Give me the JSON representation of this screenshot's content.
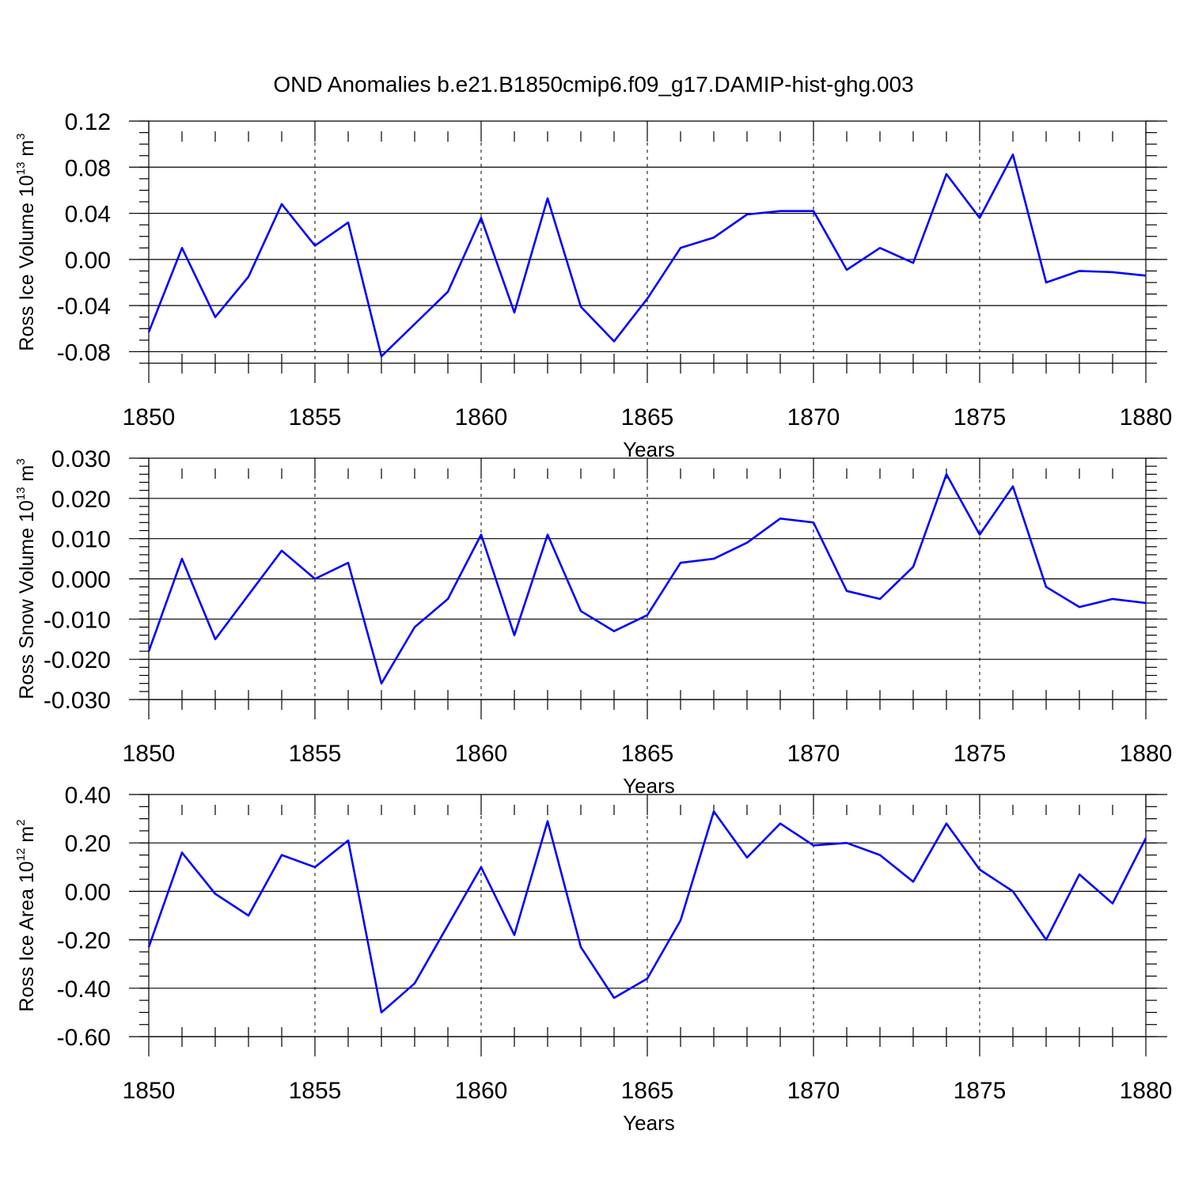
{
  "title": "OND Anomalies b.e21.B1850cmip6.f09_g17.DAMIP-hist-ghg.003",
  "line_color": "#0000ff",
  "chart_data": [
    {
      "type": "line",
      "ylabel_main": "Ross Ice Volume 10",
      "ylabel_exp": "13",
      "ylabel_unit": " m",
      "ylabel_unit_exp": "3",
      "xlabel": "Years",
      "xlim": [
        1850,
        1880
      ],
      "ylim": [
        -0.09,
        0.12
      ],
      "xticks": [
        1850,
        1855,
        1860,
        1865,
        1870,
        1875,
        1880
      ],
      "xtick_labels": [
        "1850",
        "1855",
        "1860",
        "1865",
        "1870",
        "1875",
        "1880"
      ],
      "yticks": [
        -0.08,
        -0.04,
        0.0,
        0.04,
        0.08,
        0.12
      ],
      "ytick_labels": [
        "-0.08",
        "-0.04",
        "0.00",
        "0.04",
        "0.08",
        "0.12"
      ],
      "yminor_step": 0.01,
      "x": [
        1850,
        1851,
        1852,
        1853,
        1854,
        1855,
        1856,
        1857,
        1858,
        1859,
        1860,
        1861,
        1862,
        1863,
        1864,
        1865,
        1866,
        1867,
        1868,
        1869,
        1870,
        1871,
        1872,
        1873,
        1874,
        1875,
        1876,
        1877,
        1878,
        1879,
        1880
      ],
      "series": [
        {
          "values": [
            -0.063,
            0.01,
            -0.05,
            -0.015,
            0.048,
            0.012,
            0.032,
            -0.084,
            -0.056,
            -0.028,
            0.036,
            -0.046,
            0.053,
            -0.041,
            -0.071,
            -0.034,
            0.01,
            0.019,
            0.039,
            0.042,
            0.042,
            -0.009,
            0.01,
            -0.003,
            0.074,
            0.036,
            0.091,
            -0.02,
            -0.01,
            -0.011,
            -0.014
          ]
        }
      ]
    },
    {
      "type": "line",
      "ylabel_main": "Ross Snow Volume 10",
      "ylabel_exp": "13",
      "ylabel_unit": " m",
      "ylabel_unit_exp": "3",
      "xlabel": "Years",
      "xlim": [
        1850,
        1880
      ],
      "ylim": [
        -0.03,
        0.03
      ],
      "xticks": [
        1850,
        1855,
        1860,
        1865,
        1870,
        1875,
        1880
      ],
      "xtick_labels": [
        "1850",
        "1855",
        "1860",
        "1865",
        "1870",
        "1875",
        "1880"
      ],
      "yticks": [
        -0.03,
        -0.02,
        -0.01,
        0.0,
        0.01,
        0.02,
        0.03
      ],
      "ytick_labels": [
        "-0.030",
        "-0.020",
        "-0.010",
        "0.000",
        "0.010",
        "0.020",
        "0.030"
      ],
      "yminor_step": 0.002,
      "x": [
        1850,
        1851,
        1852,
        1853,
        1854,
        1855,
        1856,
        1857,
        1858,
        1859,
        1860,
        1861,
        1862,
        1863,
        1864,
        1865,
        1866,
        1867,
        1868,
        1869,
        1870,
        1871,
        1872,
        1873,
        1874,
        1875,
        1876,
        1877,
        1878,
        1879,
        1880
      ],
      "series": [
        {
          "values": [
            -0.018,
            0.005,
            -0.015,
            -0.004,
            0.007,
            0.0,
            0.004,
            -0.026,
            -0.012,
            -0.005,
            0.011,
            -0.014,
            0.011,
            -0.008,
            -0.013,
            -0.009,
            0.004,
            0.005,
            0.009,
            0.015,
            0.014,
            -0.003,
            -0.005,
            0.003,
            0.026,
            0.011,
            0.023,
            -0.002,
            -0.007,
            -0.005,
            -0.006
          ]
        }
      ]
    },
    {
      "type": "line",
      "ylabel_main": "Ross Ice Area 10",
      "ylabel_exp": "12",
      "ylabel_unit": " m",
      "ylabel_unit_exp": "2",
      "xlabel": "Years",
      "xlim": [
        1850,
        1880
      ],
      "ylim": [
        -0.6,
        0.4
      ],
      "xticks": [
        1850,
        1855,
        1860,
        1865,
        1870,
        1875,
        1880
      ],
      "xtick_labels": [
        "1850",
        "1855",
        "1860",
        "1865",
        "1870",
        "1875",
        "1880"
      ],
      "yticks": [
        -0.6,
        -0.4,
        -0.2,
        0.0,
        0.2,
        0.4
      ],
      "ytick_labels": [
        "-0.60",
        "-0.40",
        "-0.20",
        "0.00",
        "0.20",
        "0.40"
      ],
      "yminor_step": 0.05,
      "x": [
        1850,
        1851,
        1852,
        1853,
        1854,
        1855,
        1856,
        1857,
        1858,
        1859,
        1860,
        1861,
        1862,
        1863,
        1864,
        1865,
        1866,
        1867,
        1868,
        1869,
        1870,
        1871,
        1872,
        1873,
        1874,
        1875,
        1876,
        1877,
        1878,
        1879,
        1880
      ],
      "series": [
        {
          "values": [
            -0.23,
            0.16,
            -0.01,
            -0.1,
            0.15,
            0.1,
            0.21,
            -0.5,
            -0.38,
            -0.14,
            0.1,
            -0.18,
            0.29,
            -0.23,
            -0.44,
            -0.36,
            -0.12,
            0.33,
            0.14,
            0.28,
            0.19,
            0.2,
            0.15,
            0.04,
            0.28,
            0.09,
            0.0,
            -0.2,
            0.07,
            -0.05,
            0.22
          ]
        }
      ]
    }
  ]
}
